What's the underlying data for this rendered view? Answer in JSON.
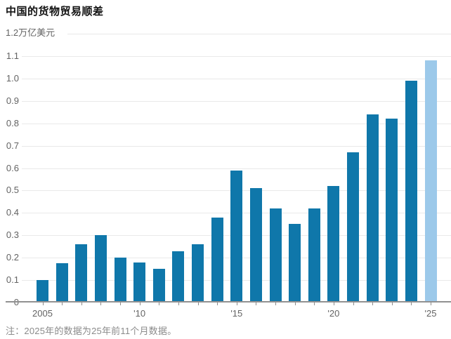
{
  "title": "中国的货物贸易顺差",
  "note": "注：2025年的数据为25年前11个月数据。",
  "chart_data": {
    "type": "bar",
    "title": "中国的货物贸易顺差",
    "unit_label": "万亿美元",
    "categories": [
      2005,
      2006,
      2007,
      2008,
      2009,
      2010,
      2011,
      2012,
      2013,
      2014,
      2015,
      2016,
      2017,
      2018,
      2019,
      2020,
      2021,
      2022,
      2023,
      2024,
      2025
    ],
    "values": [
      0.1,
      0.175,
      0.26,
      0.3,
      0.2,
      0.18,
      0.15,
      0.23,
      0.26,
      0.38,
      0.59,
      0.51,
      0.42,
      0.35,
      0.42,
      0.52,
      0.67,
      0.84,
      0.82,
      0.99,
      1.08
    ],
    "highlight_last_bar": true,
    "bar_color": "#0f77aa",
    "highlight_color": "#9cc9ea",
    "ylim": [
      0,
      1.2
    ],
    "ytick_labels": [
      "0",
      "0.1",
      "0.2",
      "0.3",
      "0.4",
      "0.5",
      "0.6",
      "0.7",
      "0.8",
      "0.9",
      "1.0",
      "1.1",
      "1.2"
    ],
    "xtick_labels": {
      "0": "2005",
      "5": "'10",
      "10": "'15",
      "15": "'20",
      "20": "'25"
    },
    "grid": true,
    "legend": "none",
    "note": "注：2025年的数据为25年前11个月数据。"
  }
}
